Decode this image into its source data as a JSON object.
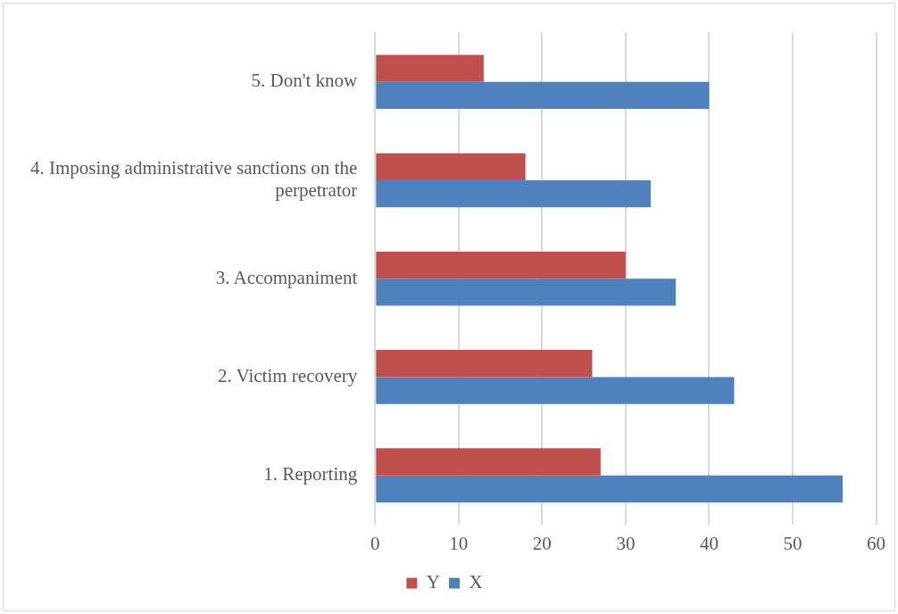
{
  "chart_data": {
    "type": "bar",
    "orientation": "horizontal",
    "categories": [
      "5. Don't know",
      "4. Imposing administrative sanctions on the perpetrator",
      "3. Accompaniment",
      "2. Victim recovery",
      "1. Reporting"
    ],
    "series": [
      {
        "name": "Y",
        "color": "#c0504d",
        "values": [
          13,
          18,
          30,
          26,
          27
        ]
      },
      {
        "name": "X",
        "color": "#4f81bd",
        "values": [
          40,
          33,
          36,
          43,
          56
        ]
      }
    ],
    "xlim": [
      0,
      60
    ],
    "xticks": [
      0,
      10,
      20,
      30,
      40,
      50,
      60
    ],
    "grid": "x",
    "legend": "bottom"
  }
}
